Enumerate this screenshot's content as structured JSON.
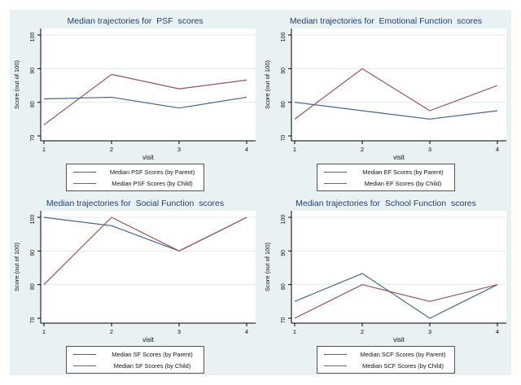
{
  "figure": {
    "background": "#e9f1f3",
    "frame": "#ffffff"
  },
  "colors": {
    "parent": "#44698d",
    "child": "#9b5458",
    "title": "#223f73",
    "grid": "#e3ebee",
    "axis": "#000000",
    "text": "#111111",
    "plot_bg": "#ffffff",
    "legend_border": "#555555"
  },
  "chart_data": [
    {
      "type": "line",
      "title": "Median trajectories for  PSF  scores",
      "xlabel": "visit",
      "ylabel": "Score (out of 100)",
      "x": [
        1,
        2,
        3,
        4
      ],
      "xticks": [
        1,
        2,
        3,
        4
      ],
      "yticks": [
        70,
        80,
        90,
        100
      ],
      "xlim": [
        1,
        4
      ],
      "ylim": [
        70,
        100
      ],
      "grid": true,
      "legend_position": "below",
      "series": [
        {
          "name": "Median PSF Scores (by Parent)",
          "color_key": "parent",
          "values": [
            81,
            81.5,
            78.3,
            81.5
          ]
        },
        {
          "name": "Median PSF Scores (by Child)",
          "color_key": "child",
          "values": [
            73.3,
            88.3,
            84,
            86.6
          ]
        }
      ]
    },
    {
      "type": "line",
      "title": "Median trajectories for  Emotional Function  scores",
      "xlabel": "visit",
      "ylabel": "Score (out of 100)",
      "x": [
        1,
        2,
        3,
        4
      ],
      "xticks": [
        1,
        2,
        3,
        4
      ],
      "yticks": [
        70,
        80,
        90,
        100
      ],
      "xlim": [
        1,
        4
      ],
      "ylim": [
        70,
        100
      ],
      "grid": true,
      "legend_position": "below",
      "series": [
        {
          "name": "Median EF Scores (by Parent)",
          "color_key": "parent",
          "values": [
            80,
            77.5,
            75,
            77.5
          ]
        },
        {
          "name": "Median EF Scores (by Child)",
          "color_key": "child",
          "values": [
            75,
            90,
            77.5,
            85
          ]
        }
      ]
    },
    {
      "type": "line",
      "title": "Median trajectories for  Social Function  scores",
      "xlabel": "visit",
      "ylabel": "Score (out of 100)",
      "x": [
        1,
        2,
        3,
        4
      ],
      "xticks": [
        1,
        2,
        3,
        4
      ],
      "yticks": [
        70,
        80,
        90,
        100
      ],
      "xlim": [
        1,
        4
      ],
      "ylim": [
        70,
        100
      ],
      "grid": true,
      "legend_position": "below",
      "series": [
        {
          "name": "Median SF Scores (by Parent)",
          "color_key": "parent",
          "values": [
            100,
            97.5,
            90,
            100
          ]
        },
        {
          "name": "Median SF Scores (by Child)",
          "color_key": "child",
          "values": [
            80,
            100,
            90,
            100
          ]
        }
      ]
    },
    {
      "type": "line",
      "title": "Median trajectories for  School Function  scores",
      "xlabel": "visit",
      "ylabel": "Score (out of 100)",
      "x": [
        1,
        2,
        3,
        4
      ],
      "xticks": [
        1,
        2,
        3,
        4
      ],
      "yticks": [
        70,
        80,
        90,
        100
      ],
      "xlim": [
        1,
        4
      ],
      "ylim": [
        70,
        100
      ],
      "grid": true,
      "legend_position": "below",
      "series": [
        {
          "name": "Median SCF Scores (by Parent)",
          "color_key": "parent",
          "values": [
            75,
            83.3,
            70,
            80
          ]
        },
        {
          "name": "Median SCF Scores (by Child)",
          "color_key": "child",
          "values": [
            70,
            80,
            75,
            80
          ]
        }
      ]
    }
  ]
}
